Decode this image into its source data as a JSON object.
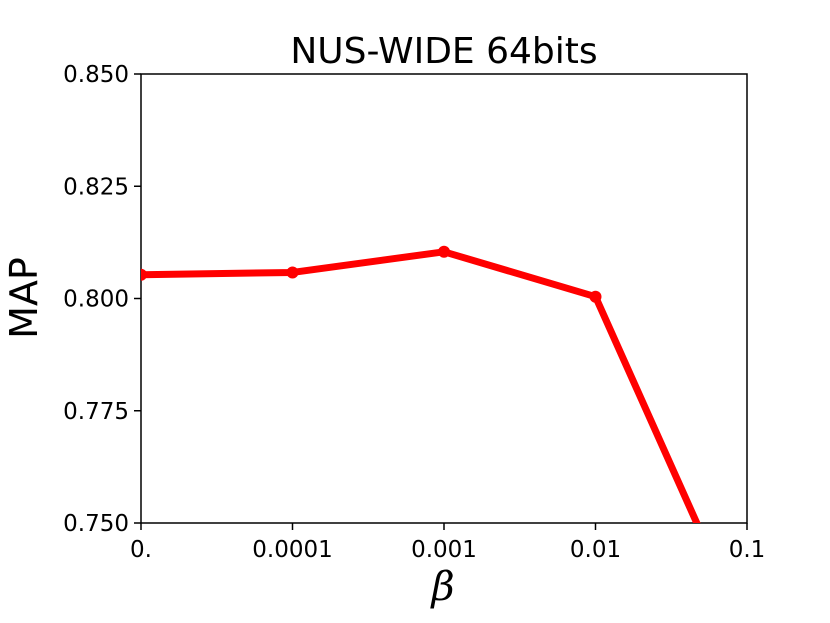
{
  "chart_data": {
    "type": "line",
    "title": "NUS-WIDE 64bits",
    "xlabel": "β",
    "ylabel": "MAP",
    "x_scale": "categorical",
    "categories": [
      "0.",
      "0.0001",
      "0.001",
      "0.01",
      "0.1"
    ],
    "yticks": [
      "0.750",
      "0.775",
      "0.800",
      "0.825",
      "0.850"
    ],
    "ylim": [
      0.75,
      0.85
    ],
    "grid": false,
    "series": [
      {
        "color": "#ff0000",
        "marker": "circle",
        "points": [
          {
            "x": "0.",
            "y": 0.8053
          },
          {
            "x": "0.0001",
            "y": 0.8058
          },
          {
            "x": "0.001",
            "y": 0.8104
          },
          {
            "x": "0.01",
            "y": 0.8004
          },
          {
            "x": "0.1",
            "y": 0.725
          }
        ]
      }
    ]
  }
}
